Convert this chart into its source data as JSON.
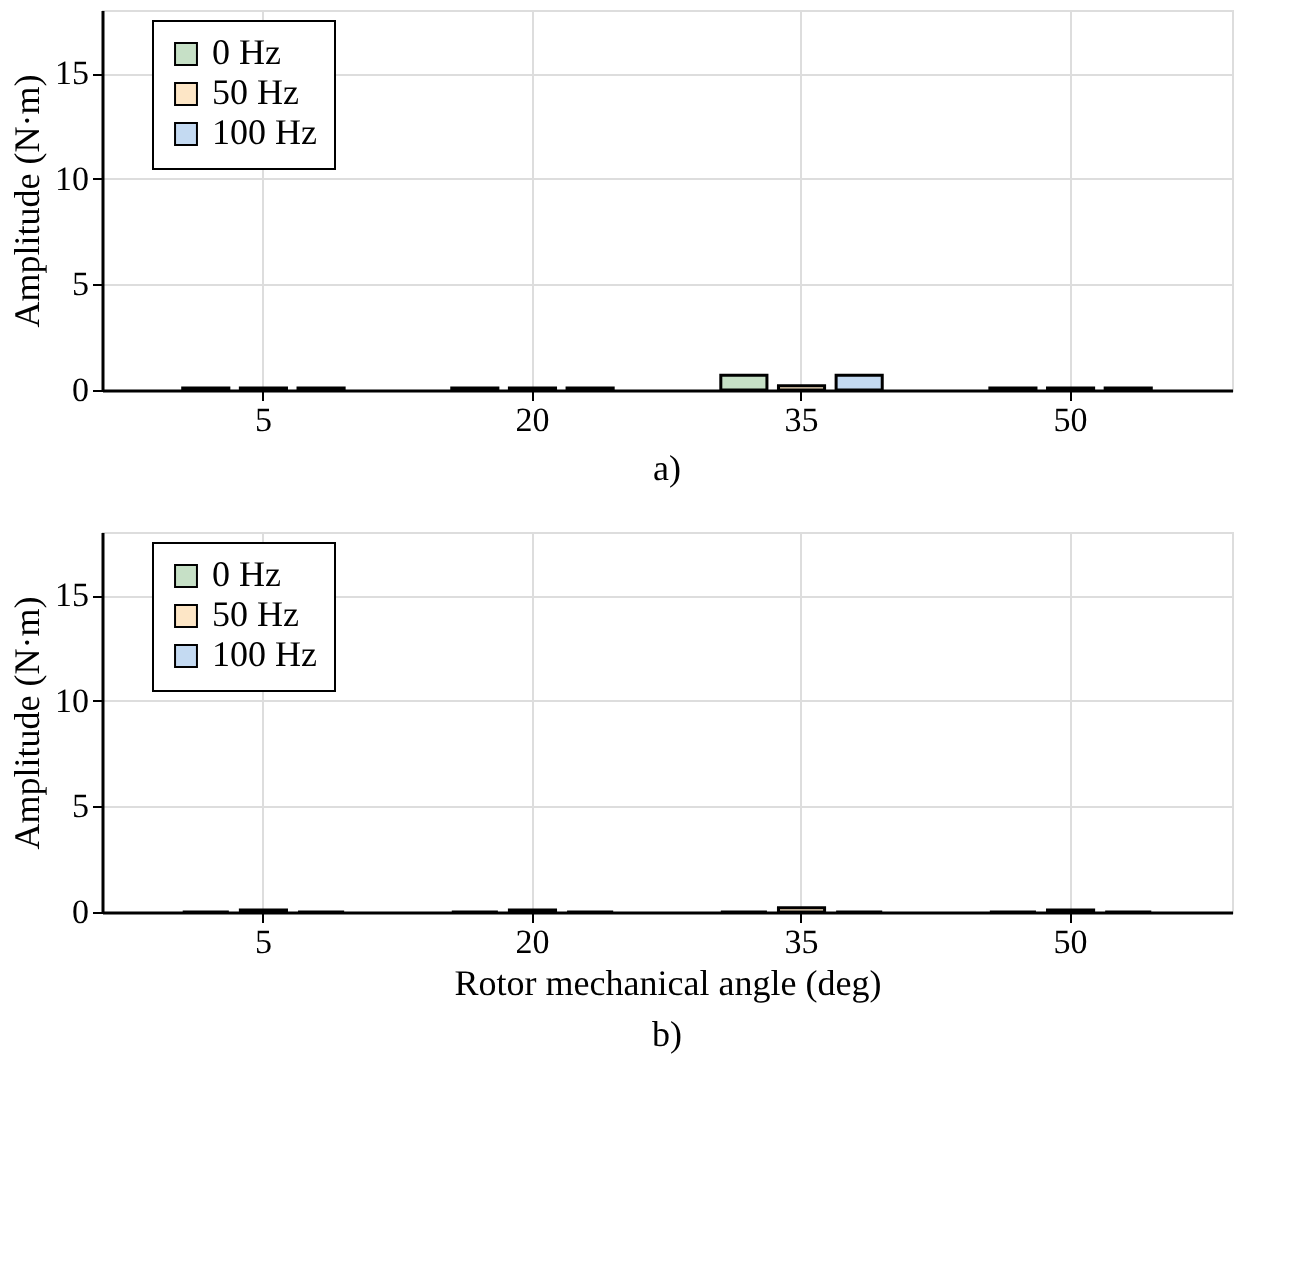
{
  "chart_data": [
    {
      "type": "bar",
      "categories": [
        "5",
        "20",
        "35",
        "50"
      ],
      "ylabel": "Amplitude (N·m)",
      "ylim": [
        0,
        18
      ],
      "yticks": [
        0,
        5,
        10,
        15
      ],
      "grid": true,
      "legend": "top left",
      "annotations": [
        "a)"
      ],
      "series": [
        {
          "name": "0 Hz",
          "color": "#c6e0c6",
          "values": [
            0.1,
            0.1,
            0.7,
            0.1
          ]
        },
        {
          "name": "50 Hz",
          "color": "#fde6c6",
          "values": [
            0.1,
            0.1,
            0.2,
            0.1
          ]
        },
        {
          "name": "100 Hz",
          "color": "#c4daf2",
          "values": [
            0.1,
            0.1,
            0.7,
            0.1
          ]
        }
      ]
    },
    {
      "type": "bar",
      "categories": [
        "5",
        "20",
        "35",
        "50"
      ],
      "xlabel": "Rotor mechanical angle (deg)",
      "ylabel": "Amplitude (N·m)",
      "ylim": [
        0,
        18
      ],
      "yticks": [
        0,
        5,
        10,
        15
      ],
      "grid": true,
      "legend": "top left",
      "annotations": [
        "b)"
      ],
      "series": [
        {
          "name": "0 Hz",
          "color": "#c6e0c6",
          "values": [
            0,
            0,
            0,
            0
          ]
        },
        {
          "name": "50 Hz",
          "color": "#fde6c6",
          "values": [
            0.1,
            0.1,
            0.2,
            0.1
          ]
        },
        {
          "name": "100 Hz",
          "color": "#c4daf2",
          "values": [
            0,
            0,
            0,
            0
          ]
        }
      ]
    }
  ]
}
